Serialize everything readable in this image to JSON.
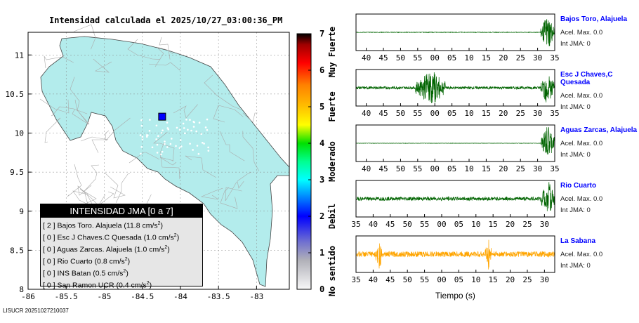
{
  "title": "Intensidad calculada el 2025/10/27_03:00:36_PM",
  "footer": "LISUCR 20251027210037",
  "map": {
    "xticks": [
      "-86",
      "-85.5",
      "-85",
      "-84.5",
      "-84",
      "-83.5",
      "-83"
    ],
    "yticks": [
      "8",
      "8.5",
      "9",
      "9.5",
      "10",
      "10.5",
      "11"
    ],
    "xlim": [
      -86,
      -82.57
    ],
    "ylim": [
      8,
      11.29
    ],
    "marker": {
      "lon": -84.24,
      "lat": 10.21,
      "color": "#0000ff"
    }
  },
  "legend": {
    "title": "INTENSIDAD JMA [0 a 7]",
    "unit": "cm/s",
    "exp": "2",
    "rows": [
      {
        "int": "[ 2 ]",
        "name": "Bajos Toro. Alajuela",
        "acc": "(11.8 cm/s"
      },
      {
        "int": "[ 0 ]",
        "name": "Esc J Chaves.C Quesada",
        "acc": "(1.0 cm/s"
      },
      {
        "int": "[ 0 ]",
        "name": "Aguas Zarcas. Alajuela",
        "acc": "(1.0 cm/s"
      },
      {
        "int": "[ 0 ]",
        "name": "Rio Cuarto",
        "acc": "(0.8 cm/s"
      },
      {
        "int": "[ 0 ]",
        "name": "INS Batan",
        "acc": "(0.5 cm/s"
      },
      {
        "int": "[ 0 ]",
        "name": "San Ramon UCR",
        "acc": "(0.4 cm/s"
      }
    ]
  },
  "colorbar": {
    "ticks": [
      "0",
      "1",
      "2",
      "3",
      "4",
      "5",
      "6",
      "7"
    ],
    "labels": [
      "No sentido",
      "Debil",
      "Moderado",
      "Fuerte",
      "Muy Fuerte"
    ]
  },
  "chart_data": {
    "type": "line",
    "xlabel": "Tiempo (s)",
    "series": [
      {
        "name": "Bajos Toro, Alajuela",
        "acel": "Acel. Max. 0.0",
        "jma": "Int JMA: 0",
        "color": "#006400",
        "ticks": [
          "40",
          "45",
          "50",
          "55",
          "00",
          "05",
          "10",
          "15",
          "20",
          "25",
          "30",
          "35"
        ],
        "events": [
          [
            0.93,
            1.0
          ]
        ],
        "noise": 0.03
      },
      {
        "name": "Esc J Chaves,C Quesada",
        "acel": "Acel. Max. 0.0",
        "jma": "Int JMA: 0",
        "color": "#006400",
        "ticks": [
          "40",
          "45",
          "50",
          "55",
          "00",
          "05",
          "10",
          "15",
          "20",
          "25",
          "30",
          "35"
        ],
        "events": [
          [
            0.3,
            0.45
          ],
          [
            0.93,
            1.0
          ]
        ],
        "noise": 0.15
      },
      {
        "name": "Aguas Zarcas, Alajuela",
        "acel": "Acel. Max. 0.0",
        "jma": "Int JMA: 0",
        "color": "#006400",
        "ticks": [
          "40",
          "45",
          "50",
          "55",
          "00",
          "05",
          "10",
          "15",
          "20",
          "25",
          "30",
          "35"
        ],
        "events": [
          [
            0.93,
            1.0
          ]
        ],
        "noise": 0.02
      },
      {
        "name": "Rio Cuarto",
        "acel": "Acel. Max. 0.0",
        "jma": "Int JMA: 0",
        "color": "#006400",
        "ticks": [
          "35",
          "40",
          "45",
          "50",
          "55",
          "00",
          "05",
          "10",
          "15",
          "20",
          "25",
          "30"
        ],
        "events": [
          [
            0.93,
            1.0
          ]
        ],
        "noise": 0.2
      },
      {
        "name": "La Sabana",
        "acel": "Acel. Max. 0.0",
        "jma": "Int JMA: 0",
        "color": "#ffa500",
        "ticks": [
          "35",
          "40",
          "45",
          "50",
          "55",
          "00",
          "05",
          "10",
          "15",
          "20",
          "25",
          "30"
        ],
        "events": [
          [
            0.1,
            0.13
          ],
          [
            0.65,
            0.68
          ]
        ],
        "noise": 0.3
      }
    ]
  }
}
